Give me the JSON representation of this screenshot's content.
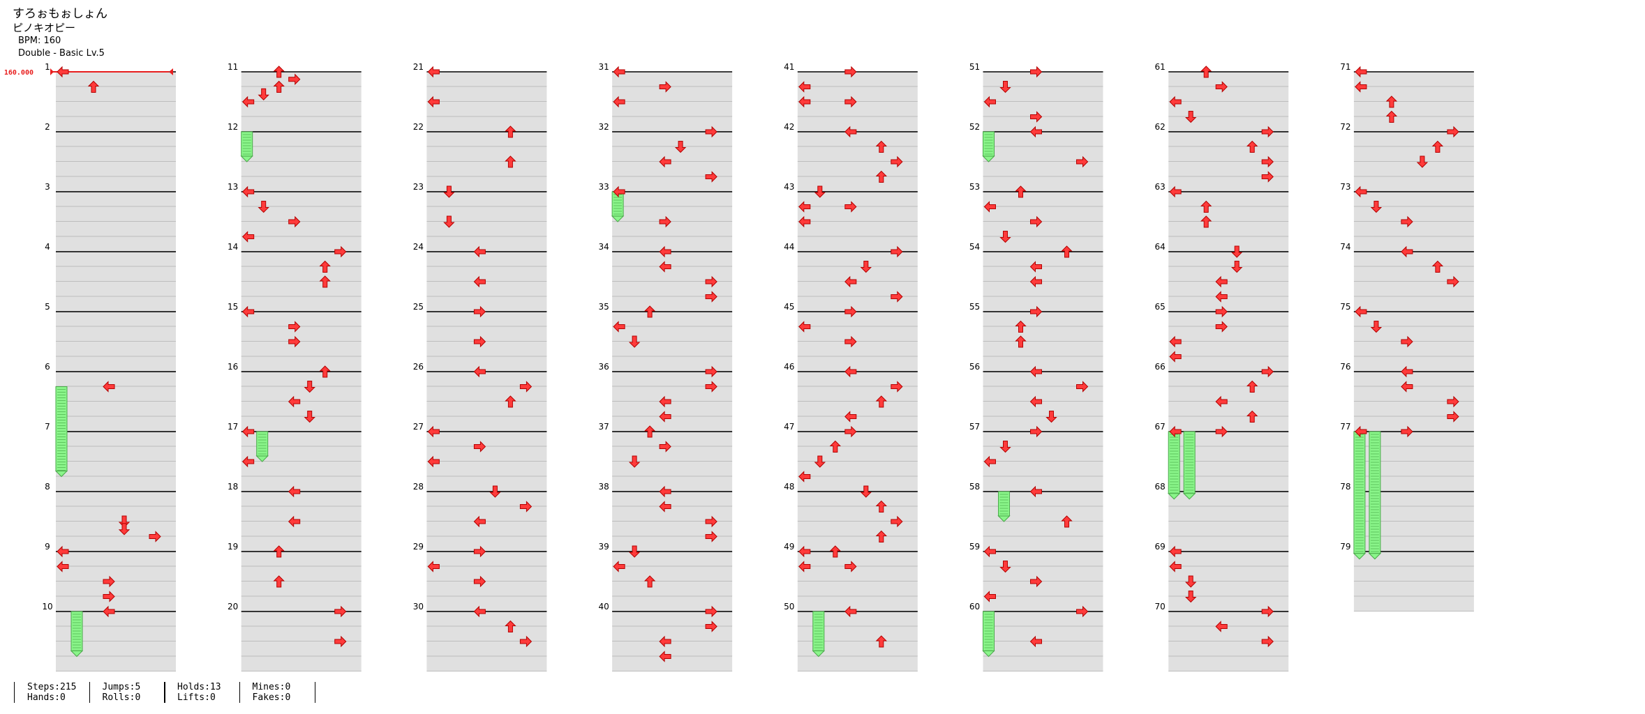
{
  "header": {
    "title": "すろぉもぉしょん",
    "artist": "ピノキオピー",
    "bpm_text": "BPM: 160",
    "chart_text": "Double - Basic Lv.5"
  },
  "bpm_change_label": "160.000",
  "measure_count": 79,
  "columns": 8,
  "measures_per_column": 10,
  "colors": {
    "arrow": "#ff3b3b",
    "hold": "#8af58a",
    "lane": "#e0e0e0",
    "bpm": "#e81e1e"
  },
  "notes": [
    [
      1,
      0,
      "L"
    ],
    [
      1,
      1,
      "U"
    ],
    [
      6,
      1,
      "L"
    ],
    [
      8,
      2,
      "D"
    ],
    [
      8,
      2.5,
      "D"
    ],
    [
      8,
      3,
      "R"
    ],
    [
      9,
      0,
      "L"
    ],
    [
      9,
      1,
      "L"
    ],
    [
      9,
      2,
      "R"
    ],
    [
      9,
      3,
      "R"
    ],
    [
      10,
      0,
      "L"
    ],
    [
      11,
      0,
      "U"
    ],
    [
      11,
      0.5,
      "R"
    ],
    [
      11,
      1,
      "U"
    ],
    [
      11,
      1.5,
      "D"
    ],
    [
      11,
      2,
      "L"
    ],
    [
      13,
      0,
      "L"
    ],
    [
      13,
      1,
      "D"
    ],
    [
      13,
      2,
      "R"
    ],
    [
      13,
      3,
      "L"
    ],
    [
      14,
      0,
      "R"
    ],
    [
      14,
      1,
      "U"
    ],
    [
      14,
      2,
      "U"
    ],
    [
      15,
      0,
      "L"
    ],
    [
      15,
      1,
      "R"
    ],
    [
      15,
      2,
      "R"
    ],
    [
      16,
      0,
      "U"
    ],
    [
      16,
      1,
      "D"
    ],
    [
      16,
      2,
      "L"
    ],
    [
      16,
      3,
      "D"
    ],
    [
      17,
      0,
      "L"
    ],
    [
      17,
      2,
      "L"
    ],
    [
      18,
      0,
      "L"
    ],
    [
      18,
      2,
      "L"
    ],
    [
      19,
      0,
      "U"
    ],
    [
      19,
      2,
      "U"
    ],
    [
      20,
      0,
      "R"
    ],
    [
      20,
      2,
      "R"
    ],
    [
      21,
      0,
      "L"
    ],
    [
      21,
      2,
      "L"
    ],
    [
      22,
      0,
      "U"
    ],
    [
      22,
      2,
      "U"
    ],
    [
      23,
      0,
      "D"
    ],
    [
      23,
      2,
      "D"
    ],
    [
      24,
      0,
      "L"
    ],
    [
      24,
      2,
      "L"
    ],
    [
      25,
      0,
      "R"
    ],
    [
      25,
      2,
      "R"
    ],
    [
      26,
      0,
      "L"
    ],
    [
      26,
      1,
      "R"
    ],
    [
      26,
      2,
      "U"
    ],
    [
      27,
      0,
      "L"
    ],
    [
      27,
      1,
      "R"
    ],
    [
      27,
      2,
      "L"
    ],
    [
      28,
      0,
      "D"
    ],
    [
      28,
      1,
      "R"
    ],
    [
      28,
      2,
      "L"
    ],
    [
      29,
      0,
      "R"
    ],
    [
      29,
      1,
      "L"
    ],
    [
      29,
      2,
      "R"
    ],
    [
      30,
      0,
      "L"
    ],
    [
      30,
      1,
      "U"
    ],
    [
      30,
      2,
      "R"
    ],
    [
      31,
      0,
      "L"
    ],
    [
      31,
      1,
      "R"
    ],
    [
      31,
      2,
      "L"
    ],
    [
      32,
      0,
      "R"
    ],
    [
      32,
      1,
      "D"
    ],
    [
      32,
      2,
      "L"
    ],
    [
      32,
      3,
      "R"
    ],
    [
      33,
      0,
      "L"
    ],
    [
      33,
      2,
      "R"
    ],
    [
      34,
      0,
      "L"
    ],
    [
      34,
      1,
      "L"
    ],
    [
      34,
      2,
      "R"
    ],
    [
      34,
      3,
      "R"
    ],
    [
      35,
      0,
      "U"
    ],
    [
      35,
      1,
      "L"
    ],
    [
      35,
      2,
      "D"
    ],
    [
      36,
      0,
      "R"
    ],
    [
      36,
      1,
      "R"
    ],
    [
      36,
      2,
      "L"
    ],
    [
      36,
      3,
      "L"
    ],
    [
      37,
      0,
      "U"
    ],
    [
      37,
      1,
      "R"
    ],
    [
      37,
      2,
      "D"
    ],
    [
      38,
      0,
      "L"
    ],
    [
      38,
      1,
      "L"
    ],
    [
      38,
      2,
      "R"
    ],
    [
      38,
      3,
      "R"
    ],
    [
      39,
      0,
      "D"
    ],
    [
      39,
      1,
      "L"
    ],
    [
      39,
      2,
      "U"
    ],
    [
      40,
      0,
      "R"
    ],
    [
      40,
      1,
      "R"
    ],
    [
      40,
      2,
      "L"
    ],
    [
      40,
      3,
      "L"
    ],
    [
      41,
      0,
      "R"
    ],
    [
      41,
      1,
      "L"
    ],
    [
      41,
      2,
      "R"
    ],
    [
      41,
      2,
      "L"
    ],
    [
      42,
      0,
      "L"
    ],
    [
      42,
      1,
      "U"
    ],
    [
      42,
      2,
      "R"
    ],
    [
      42,
      3,
      "U"
    ],
    [
      43,
      0,
      "D"
    ],
    [
      43,
      1,
      "L"
    ],
    [
      43,
      1,
      "R"
    ],
    [
      43,
      2,
      "L"
    ],
    [
      44,
      0,
      "R"
    ],
    [
      44,
      1,
      "D"
    ],
    [
      44,
      2,
      "L"
    ],
    [
      44,
      3,
      "R"
    ],
    [
      45,
      0,
      "R"
    ],
    [
      45,
      1,
      "L"
    ],
    [
      45,
      2,
      "R"
    ],
    [
      46,
      0,
      "L"
    ],
    [
      46,
      1,
      "R"
    ],
    [
      46,
      2,
      "U"
    ],
    [
      46,
      3,
      "L"
    ],
    [
      47,
      0,
      "R"
    ],
    [
      47,
      1,
      "U"
    ],
    [
      47,
      2,
      "D"
    ],
    [
      47,
      3,
      "L"
    ],
    [
      48,
      0,
      "D"
    ],
    [
      48,
      1,
      "U"
    ],
    [
      48,
      2,
      "R"
    ],
    [
      48,
      3,
      "U"
    ],
    [
      49,
      0,
      "U"
    ],
    [
      49,
      0,
      "L"
    ],
    [
      49,
      1,
      "R"
    ],
    [
      49,
      1,
      "L"
    ],
    [
      50,
      0,
      "L"
    ],
    [
      50,
      2,
      "U"
    ],
    [
      51,
      0,
      "R"
    ],
    [
      51,
      1,
      "D"
    ],
    [
      51,
      2,
      "L"
    ],
    [
      51,
      3,
      "R"
    ],
    [
      52,
      0,
      "L"
    ],
    [
      52,
      2,
      "R"
    ],
    [
      53,
      0,
      "U"
    ],
    [
      53,
      1,
      "L"
    ],
    [
      53,
      2,
      "R"
    ],
    [
      53,
      3,
      "D"
    ],
    [
      54,
      0,
      "U"
    ],
    [
      54,
      1,
      "L"
    ],
    [
      54,
      2,
      "L"
    ],
    [
      55,
      0,
      "R"
    ],
    [
      55,
      1,
      "U"
    ],
    [
      55,
      2,
      "U"
    ],
    [
      56,
      0,
      "L"
    ],
    [
      56,
      1,
      "R"
    ],
    [
      56,
      2,
      "L"
    ],
    [
      56,
      3,
      "D"
    ],
    [
      57,
      0,
      "R"
    ],
    [
      57,
      1,
      "D"
    ],
    [
      57,
      2,
      "L"
    ],
    [
      58,
      0,
      "L"
    ],
    [
      58,
      2,
      "U"
    ],
    [
      59,
      0,
      "L"
    ],
    [
      59,
      1,
      "D"
    ],
    [
      59,
      2,
      "R"
    ],
    [
      59,
      3,
      "L"
    ],
    [
      60,
      0,
      "R"
    ],
    [
      60,
      2,
      "L"
    ],
    [
      61,
      0,
      "U"
    ],
    [
      61,
      1,
      "R"
    ],
    [
      61,
      2,
      "L"
    ],
    [
      61,
      3,
      "D"
    ],
    [
      62,
      0,
      "R"
    ],
    [
      62,
      1,
      "U"
    ],
    [
      62,
      2,
      "R"
    ],
    [
      62,
      3,
      "R"
    ],
    [
      63,
      0,
      "L"
    ],
    [
      63,
      1,
      "U"
    ],
    [
      63,
      2,
      "U"
    ],
    [
      64,
      0,
      "D"
    ],
    [
      64,
      1,
      "D"
    ],
    [
      64,
      2,
      "L"
    ],
    [
      64,
      3,
      "L"
    ],
    [
      65,
      0,
      "R"
    ],
    [
      65,
      1,
      "R"
    ],
    [
      65,
      2,
      "L"
    ],
    [
      65,
      3,
      "L"
    ],
    [
      66,
      0,
      "R"
    ],
    [
      66,
      1,
      "U"
    ],
    [
      66,
      2,
      "L"
    ],
    [
      66,
      3,
      "U"
    ],
    [
      67,
      0,
      "L"
    ],
    [
      67,
      0,
      "R"
    ],
    [
      69,
      0,
      "L"
    ],
    [
      69,
      1,
      "L"
    ],
    [
      69,
      2,
      "D"
    ],
    [
      69,
      3,
      "D"
    ],
    [
      70,
      0,
      "R"
    ],
    [
      70,
      1,
      "L"
    ],
    [
      70,
      2,
      "R"
    ],
    [
      71,
      0,
      "L"
    ],
    [
      71,
      1,
      "L"
    ],
    [
      71,
      2,
      "U"
    ],
    [
      71,
      3,
      "U"
    ],
    [
      72,
      0,
      "R"
    ],
    [
      72,
      1,
      "U"
    ],
    [
      72,
      2,
      "D"
    ],
    [
      73,
      0,
      "L"
    ],
    [
      73,
      1,
      "D"
    ],
    [
      73,
      2,
      "R"
    ],
    [
      74,
      0,
      "L"
    ],
    [
      74,
      1,
      "U"
    ],
    [
      74,
      2,
      "R"
    ],
    [
      75,
      0,
      "L"
    ],
    [
      75,
      1,
      "D"
    ],
    [
      75,
      2,
      "R"
    ],
    [
      76,
      0,
      "L"
    ],
    [
      76,
      1,
      "L"
    ],
    [
      76,
      2,
      "R"
    ],
    [
      76,
      3,
      "R"
    ],
    [
      77,
      0,
      "R"
    ],
    [
      77,
      0,
      "L"
    ]
  ],
  "holds": [
    [
      6,
      1,
      7,
      3
    ],
    [
      10,
      0,
      10,
      3
    ],
    [
      12,
      0,
      12,
      2
    ],
    [
      17,
      0,
      17,
      2
    ],
    [
      33,
      0,
      33,
      2
    ],
    [
      50,
      0,
      50,
      3
    ],
    [
      52,
      0,
      52,
      2
    ],
    [
      58,
      0,
      58,
      2
    ],
    [
      60,
      0,
      60,
      3
    ],
    [
      67,
      0,
      68,
      0.5
    ],
    [
      67,
      0,
      68,
      0.5
    ],
    [
      77,
      0,
      79,
      0.5
    ],
    [
      77,
      0,
      79,
      0.5
    ]
  ],
  "stats": [
    {
      "a": "Steps:215",
      "b": "Hands:0"
    },
    {
      "a": "Jumps:5",
      "b": "Rolls:0"
    },
    {
      "a": "Holds:13",
      "b": "Lifts:0"
    },
    {
      "a": "Mines:0",
      "b": "Fakes:0"
    }
  ]
}
